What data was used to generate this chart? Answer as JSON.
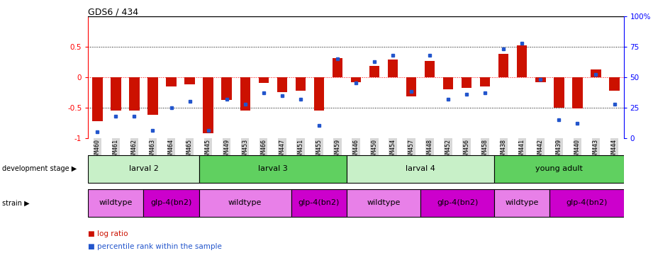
{
  "title": "GDS6 / 434",
  "samples": [
    "GSM460",
    "GSM461",
    "GSM462",
    "GSM463",
    "GSM464",
    "GSM465",
    "GSM445",
    "GSM449",
    "GSM453",
    "GSM466",
    "GSM447",
    "GSM451",
    "GSM455",
    "GSM459",
    "GSM446",
    "GSM450",
    "GSM454",
    "GSM457",
    "GSM448",
    "GSM452",
    "GSM456",
    "GSM458",
    "GSM438",
    "GSM441",
    "GSM442",
    "GSM439",
    "GSM440",
    "GSM443",
    "GSM444"
  ],
  "log_ratio": [
    -0.72,
    -0.55,
    -0.55,
    -0.62,
    -0.15,
    -0.12,
    -0.92,
    -0.38,
    -0.55,
    -0.1,
    -0.25,
    -0.22,
    -0.55,
    0.31,
    -0.08,
    0.18,
    0.29,
    -0.32,
    0.27,
    -0.2,
    -0.18,
    -0.15,
    0.38,
    0.52,
    -0.08,
    -0.5,
    -0.52,
    0.13,
    -0.22
  ],
  "percentile": [
    5,
    18,
    18,
    6,
    25,
    30,
    6,
    32,
    28,
    37,
    35,
    32,
    10,
    65,
    45,
    63,
    68,
    38,
    68,
    32,
    36,
    37,
    73,
    78,
    48,
    15,
    12,
    52,
    28
  ],
  "dev_stage_groups": [
    {
      "label": "larval 2",
      "start": 0,
      "end": 5,
      "color": "#c8f0c8"
    },
    {
      "label": "larval 3",
      "start": 6,
      "end": 13,
      "color": "#60d060"
    },
    {
      "label": "larval 4",
      "start": 14,
      "end": 21,
      "color": "#c8f0c8"
    },
    {
      "label": "young adult",
      "start": 22,
      "end": 28,
      "color": "#60d060"
    }
  ],
  "strain_groups": [
    {
      "label": "wildtype",
      "start": 0,
      "end": 2,
      "color": "#e880e8"
    },
    {
      "label": "glp-4(bn2)",
      "start": 3,
      "end": 5,
      "color": "#cc00cc"
    },
    {
      "label": "wildtype",
      "start": 6,
      "end": 10,
      "color": "#e880e8"
    },
    {
      "label": "glp-4(bn2)",
      "start": 11,
      "end": 13,
      "color": "#cc00cc"
    },
    {
      "label": "wildtype",
      "start": 14,
      "end": 17,
      "color": "#e880e8"
    },
    {
      "label": "glp-4(bn2)",
      "start": 18,
      "end": 21,
      "color": "#cc00cc"
    },
    {
      "label": "wildtype",
      "start": 22,
      "end": 24,
      "color": "#e880e8"
    },
    {
      "label": "glp-4(bn2)",
      "start": 25,
      "end": 28,
      "color": "#cc00cc"
    }
  ],
  "bar_color": "#cc1100",
  "dot_color": "#2255cc",
  "ylim": [
    -1.0,
    1.0
  ],
  "bar_width": 0.55,
  "tick_bg_color": "#d8d8d8"
}
